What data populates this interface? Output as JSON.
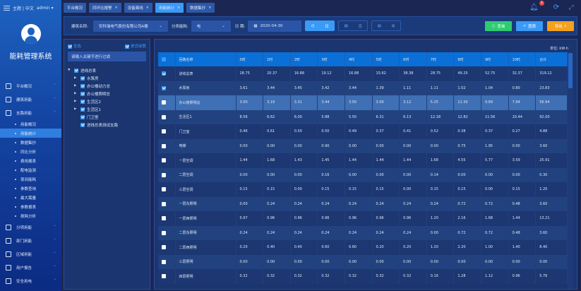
{
  "header": {
    "theme": "主题",
    "lang": "中文",
    "user": "admin",
    "notifications": "1"
  },
  "sidebar": {
    "title": "能耗管理系统",
    "items": [
      {
        "label": "平台概况",
        "icon": "monitor-icon"
      },
      {
        "label": "建筑用能",
        "icon": "building-icon"
      },
      {
        "label": "支路用能",
        "icon": "network-icon"
      }
    ],
    "sub": [
      "用能概况",
      "用能统计",
      "数据集抄",
      "同比分析",
      "费用报表",
      "配电监测",
      "夜间能耗",
      "参数查询",
      "最大需量",
      "参数报表",
      "损耗分析"
    ],
    "items2": [
      {
        "label": "分项用能",
        "icon": "target-icon"
      },
      {
        "label": "部门用能",
        "icon": "folder-icon"
      },
      {
        "label": "区域用能",
        "icon": "grid-building-icon"
      },
      {
        "label": "用户报告",
        "icon": "edit-icon"
      },
      {
        "label": "安全用电",
        "icon": "shield-icon"
      }
    ]
  },
  "tabs": [
    {
      "label": "平台概况",
      "closable": false
    },
    {
      "label": "同环比报警",
      "closable": true
    },
    {
      "label": "设备离线",
      "closable": true
    },
    {
      "label": "用能统计",
      "closable": true,
      "active": true
    },
    {
      "label": "数据集抄",
      "closable": true
    }
  ],
  "toolbar": {
    "building_label": "建筑名称:",
    "building_value": "安科瑞电气股份有限公司A楼",
    "energy_label": "分类能耗:",
    "energy_value": "电",
    "date_label": "日 期:",
    "date_value": "2020-04-30",
    "day": "日",
    "month": "月",
    "year": "年",
    "query": "查询",
    "chart": "图表",
    "export": "导出"
  },
  "tree": {
    "select_all": "全选",
    "cascade": "是否级联",
    "filter_placeholder": "请输入关键字进行过滤",
    "root": "进线总表",
    "children": [
      "水泵房",
      "办公楼动力总",
      "办公楼照明总",
      "生活区2",
      "生活区1",
      "门卫室",
      "进线总表测试支路"
    ]
  },
  "table": {
    "unit": "单位: kW·h",
    "headers": [
      "回路名称",
      "0时",
      "1时",
      "2时",
      "3时",
      "4时",
      "5时",
      "6时",
      "7时",
      "8时",
      "9时",
      "10时",
      "合计"
    ],
    "rows": [
      {
        "checked": true,
        "cells": [
          "进线总表",
          "28.75",
          "20.37",
          "16.88",
          "19.12",
          "16.88",
          "15.62",
          "38.38",
          "28.75",
          "49.25",
          "52.75",
          "32.37",
          "319.12"
        ]
      },
      {
        "checked": true,
        "cells": [
          "水泵房",
          "3.61",
          "3.44",
          "3.45",
          "3.42",
          "3.44",
          "1.39",
          "1.11",
          "1.11",
          "1.02",
          "1.04",
          "0.80",
          "23.83"
        ]
      },
      {
        "checked": false,
        "highlight": true,
        "cells": [
          "办公楼照明总",
          "3.00",
          "3.19",
          "3.31",
          "3.44",
          "3.50",
          "3.00",
          "3.12",
          "5.25",
          "11.50",
          "9.69",
          "7.94",
          "56.94"
        ]
      },
      {
        "checked": false,
        "cells": [
          "生活区1",
          "8.56",
          "6.62",
          "6.00",
          "5.88",
          "5.50",
          "6.31",
          "6.13",
          "12.18",
          "12.82",
          "11.56",
          "10.44",
          "92.00"
        ]
      },
      {
        "checked": false,
        "cells": [
          "门卫室",
          "0.46",
          "0.61",
          "0.50",
          "0.50",
          "0.49",
          "0.37",
          "0.41",
          "0.52",
          "0.38",
          "0.37",
          "0.27",
          "4.88"
        ]
      },
      {
        "checked": false,
        "cells": [
          "电梯",
          "0.00",
          "0.00",
          "0.00",
          "0.90",
          "0.00",
          "0.00",
          "0.00",
          "0.00",
          "0.75",
          "1.95",
          "0.00",
          "3.60"
        ]
      },
      {
        "checked": false,
        "cells": [
          "一层空调",
          "1.44",
          "1.68",
          "1.43",
          "1.45",
          "1.44",
          "1.44",
          "1.44",
          "1.68",
          "4.55",
          "5.77",
          "3.59",
          "25.91"
        ]
      },
      {
        "checked": false,
        "cells": [
          "二层空调",
          "0.00",
          "0.00",
          "0.00",
          "0.16",
          "0.00",
          "0.00",
          "0.00",
          "0.14",
          "0.00",
          "0.00",
          "0.00",
          "0.30"
        ]
      },
      {
        "checked": false,
        "cells": [
          "三层空调",
          "0.15",
          "0.15",
          "0.00",
          "0.15",
          "0.15",
          "0.15",
          "0.00",
          "0.15",
          "0.15",
          "0.00",
          "0.15",
          "1.20"
        ]
      },
      {
        "checked": false,
        "cells": [
          "一层东照明",
          "0.00",
          "0.24",
          "0.24",
          "0.24",
          "0.24",
          "0.24",
          "0.24",
          "0.24",
          "0.72",
          "0.72",
          "0.48",
          "3.60"
        ]
      },
      {
        "checked": false,
        "cells": [
          "一层西照明",
          "0.97",
          "0.96",
          "0.96",
          "0.96",
          "0.96",
          "0.96",
          "0.96",
          "1.20",
          "2.16",
          "1.68",
          "1.44",
          "13.21"
        ]
      },
      {
        "checked": false,
        "cells": [
          "二层东照明",
          "0.24",
          "0.24",
          "0.24",
          "0.24",
          "0.24",
          "0.24",
          "0.24",
          "0.00",
          "0.72",
          "0.72",
          "0.48",
          "3.60"
        ]
      },
      {
        "checked": false,
        "cells": [
          "二层西照明",
          "0.20",
          "0.40",
          "0.40",
          "0.60",
          "0.60",
          "0.20",
          "0.20",
          "1.20",
          "2.20",
          "1.00",
          "1.40",
          "8.40"
        ]
      },
      {
        "checked": false,
        "cells": [
          "三层照明",
          "0.00",
          "0.00",
          "0.00",
          "0.00",
          "0.00",
          "0.00",
          "0.00",
          "0.00",
          "0.00",
          "0.00",
          "0.00",
          "0.00"
        ]
      },
      {
        "checked": false,
        "cells": [
          "四层照明",
          "0.32",
          "0.32",
          "0.32",
          "0.32",
          "0.32",
          "0.32",
          "0.32",
          "0.16",
          "1.28",
          "1.12",
          "0.96",
          "5.76"
        ]
      }
    ]
  },
  "colors": {
    "accent": "#3a9af5",
    "query": "#2ecc71",
    "chart": "#3a9af5",
    "export": "#f5a11c",
    "header": "#0a6fd6"
  }
}
